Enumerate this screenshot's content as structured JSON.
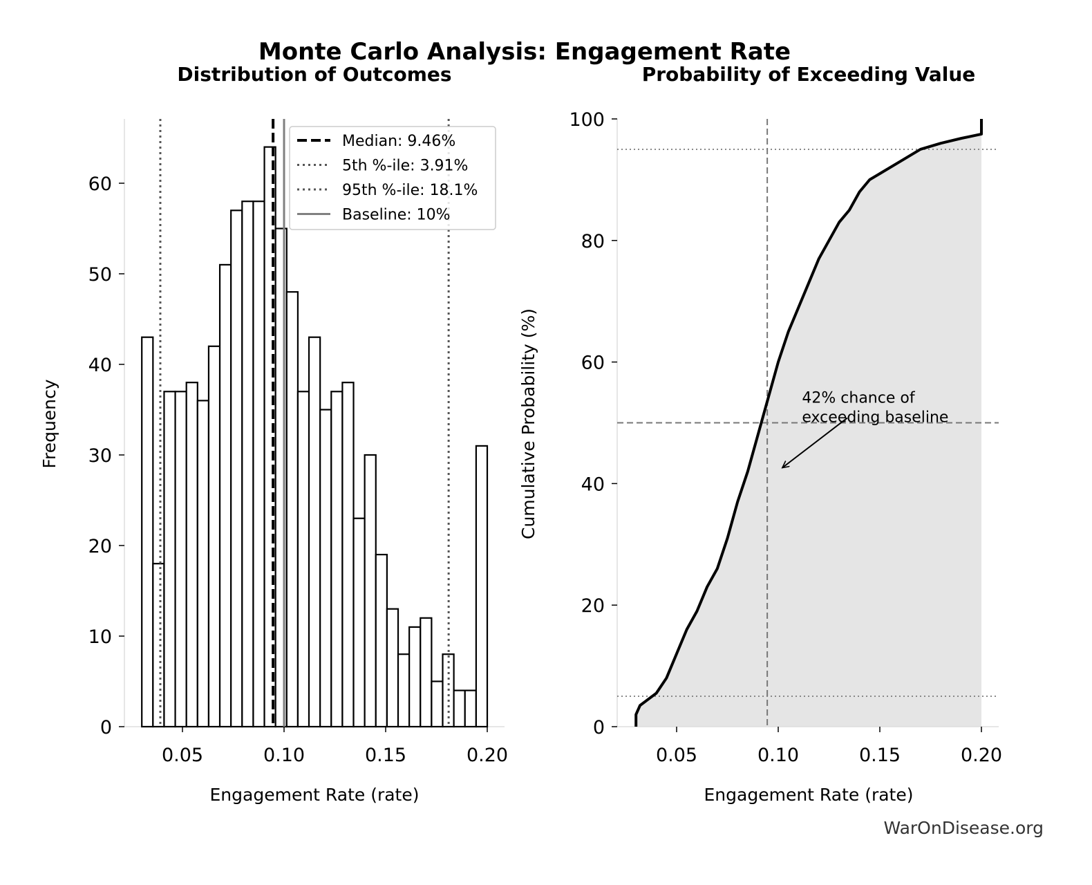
{
  "title": "Monte Carlo Analysis: Engagement Rate",
  "watermark": "WarOnDisease.org",
  "chart_data": [
    {
      "type": "bar",
      "title": "Distribution of Outcomes",
      "xlabel": "Engagement Rate (rate)",
      "ylabel": "Frequency",
      "xlim": [
        0.0215,
        0.2085
      ],
      "ylim": [
        0,
        67
      ],
      "xticks": [
        "0.05",
        "0.10",
        "0.15",
        "0.20"
      ],
      "xtick_values": [
        0.05,
        0.1,
        0.15,
        0.2
      ],
      "yticks": [
        "0",
        "10",
        "20",
        "30",
        "40",
        "50",
        "60"
      ],
      "ytick_values": [
        0,
        10,
        20,
        30,
        40,
        50,
        60
      ],
      "bin_range": [
        0.03,
        0.2
      ],
      "values": [
        43,
        18,
        37,
        37,
        38,
        36,
        42,
        51,
        57,
        58,
        58,
        64,
        55,
        48,
        37,
        43,
        35,
        37,
        38,
        23,
        30,
        19,
        13,
        8,
        11,
        12,
        5,
        8,
        4,
        4,
        31
      ],
      "bar_fill": "#ffffff",
      "bar_edge": "#000000",
      "reference_lines": [
        {
          "label": "Median: 9.46%",
          "x": 0.0946,
          "style": "dashed",
          "color": "#000000"
        },
        {
          "label": "5th %-ile: 3.91%",
          "x": 0.0391,
          "style": "dotted",
          "color": "#555555"
        },
        {
          "label": "95th %-ile: 18.1%",
          "x": 0.181,
          "style": "dotted",
          "color": "#555555"
        },
        {
          "label": "Baseline: 10%",
          "x": 0.1,
          "style": "solid",
          "color": "#808080"
        }
      ],
      "legend_position": "top-right",
      "grid": false
    },
    {
      "type": "area",
      "title": "Probability of Exceeding Value",
      "xlabel": "Engagement Rate (rate)",
      "ylabel": "Cumulative Probability (%)",
      "xlim": [
        0.0215,
        0.2085
      ],
      "ylim": [
        0,
        100
      ],
      "xticks": [
        "0.05",
        "0.10",
        "0.15",
        "0.20"
      ],
      "xtick_values": [
        0.05,
        0.1,
        0.15,
        0.2
      ],
      "yticks": [
        "0",
        "20",
        "40",
        "60",
        "80",
        "100"
      ],
      "ytick_values": [
        0,
        20,
        40,
        60,
        80,
        100
      ],
      "x": [
        0.03,
        0.03,
        0.032,
        0.036,
        0.04,
        0.045,
        0.05,
        0.055,
        0.06,
        0.065,
        0.07,
        0.075,
        0.08,
        0.085,
        0.09,
        0.095,
        0.1,
        0.105,
        0.11,
        0.115,
        0.12,
        0.125,
        0.13,
        0.135,
        0.14,
        0.145,
        0.15,
        0.16,
        0.17,
        0.18,
        0.19,
        0.2,
        0.2
      ],
      "y": [
        0,
        2,
        3.5,
        4.5,
        5.5,
        8,
        12,
        16,
        19,
        23,
        26,
        31,
        37,
        42,
        48,
        54,
        60,
        65,
        69,
        73,
        77,
        80,
        83,
        85,
        88,
        90,
        91,
        93,
        95,
        96,
        96.8,
        97.5,
        100
      ],
      "fill_color": "#e5e5e5",
      "line_color": "#000000",
      "reference_lines": [
        {
          "axis": "y",
          "value": 50,
          "style": "dashed",
          "color": "#777777"
        },
        {
          "axis": "y",
          "value": 5,
          "style": "dotted",
          "color": "#888888"
        },
        {
          "axis": "y",
          "value": 95,
          "style": "dotted",
          "color": "#888888"
        },
        {
          "axis": "x",
          "value": 0.0946,
          "style": "dashed",
          "color": "#777777"
        }
      ],
      "annotation": {
        "lines": [
          "42% chance of",
          "exceeding baseline"
        ],
        "text_at": [
          0.11,
          54
        ],
        "arrow_from": [
          0.134,
          50.8
        ],
        "arrow_to": [
          0.102,
          42.6
        ]
      },
      "grid": false
    }
  ]
}
